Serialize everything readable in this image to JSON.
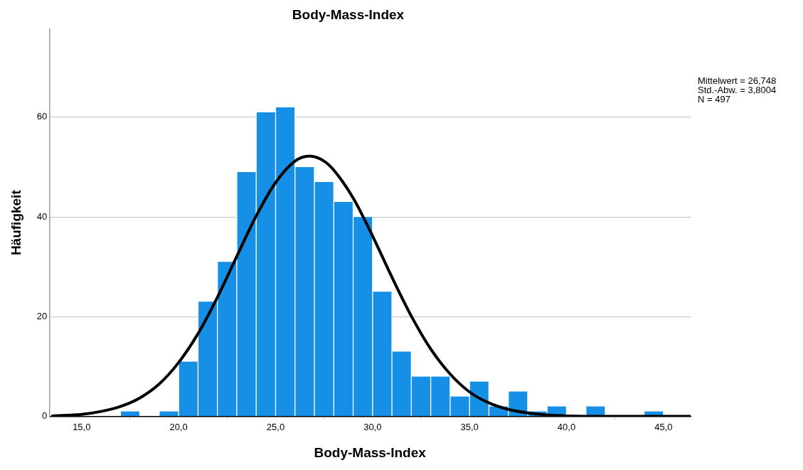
{
  "chart_data": {
    "type": "histogram",
    "title": "Body-Mass-Index",
    "xlabel": "Body-Mass-Index",
    "ylabel": "Häufigkeit",
    "bins": [
      17,
      18,
      19,
      20,
      21,
      22,
      23,
      24,
      25,
      26,
      27,
      28,
      29,
      30,
      31,
      32,
      33,
      34,
      35,
      36,
      37,
      38,
      39,
      40,
      41,
      42,
      43,
      44,
      45
    ],
    "series": [
      {
        "color": "#1590e6",
        "values": [
          1,
          0,
          1,
          11,
          23,
          31,
          49,
          61,
          62,
          50,
          47,
          43,
          40,
          25,
          13,
          8,
          8,
          4,
          7,
          2,
          5,
          1,
          2,
          0,
          2,
          0,
          0,
          1
        ]
      },
      {
        "type": "line",
        "color": "#000000",
        "x": [
          13.5,
          15,
          16,
          17,
          18,
          19,
          20,
          21,
          22,
          23,
          24,
          25,
          26,
          26.75,
          27.5,
          28,
          29,
          30,
          31,
          32,
          33,
          34,
          35,
          36,
          37,
          38,
          39,
          40,
          42,
          44,
          46.4
        ],
        "values": [
          0.1,
          0.4,
          1,
          2,
          3.7,
          6.5,
          10.8,
          16.6,
          23.9,
          32.1,
          40.2,
          46.9,
          51.2,
          52.2,
          51.2,
          49.4,
          43.8,
          36.2,
          27.9,
          20.1,
          13.5,
          8.5,
          4.9,
          2.7,
          1.4,
          0.7,
          0.3,
          0.1,
          0,
          0,
          0
        ]
      }
    ],
    "xlim": [
      13.33,
      46.4
    ],
    "xticks": [
      {
        "value": 15,
        "label": "15,0"
      },
      {
        "value": 20,
        "label": "20,0"
      },
      {
        "value": 25,
        "label": "25,0"
      },
      {
        "value": 30,
        "label": "30,0"
      },
      {
        "value": 35,
        "label": "35,0"
      },
      {
        "value": 40,
        "label": "40,0"
      },
      {
        "value": 45,
        "label": "45,0"
      }
    ],
    "ylim": [
      0,
      77.7
    ],
    "yticks": [
      0,
      20,
      40,
      60
    ],
    "grid": "y",
    "marker": "none",
    "annotations": [
      "Mittelwert = 26,748",
      "Std.-Abw. = 3,8004",
      "N = 497"
    ]
  }
}
